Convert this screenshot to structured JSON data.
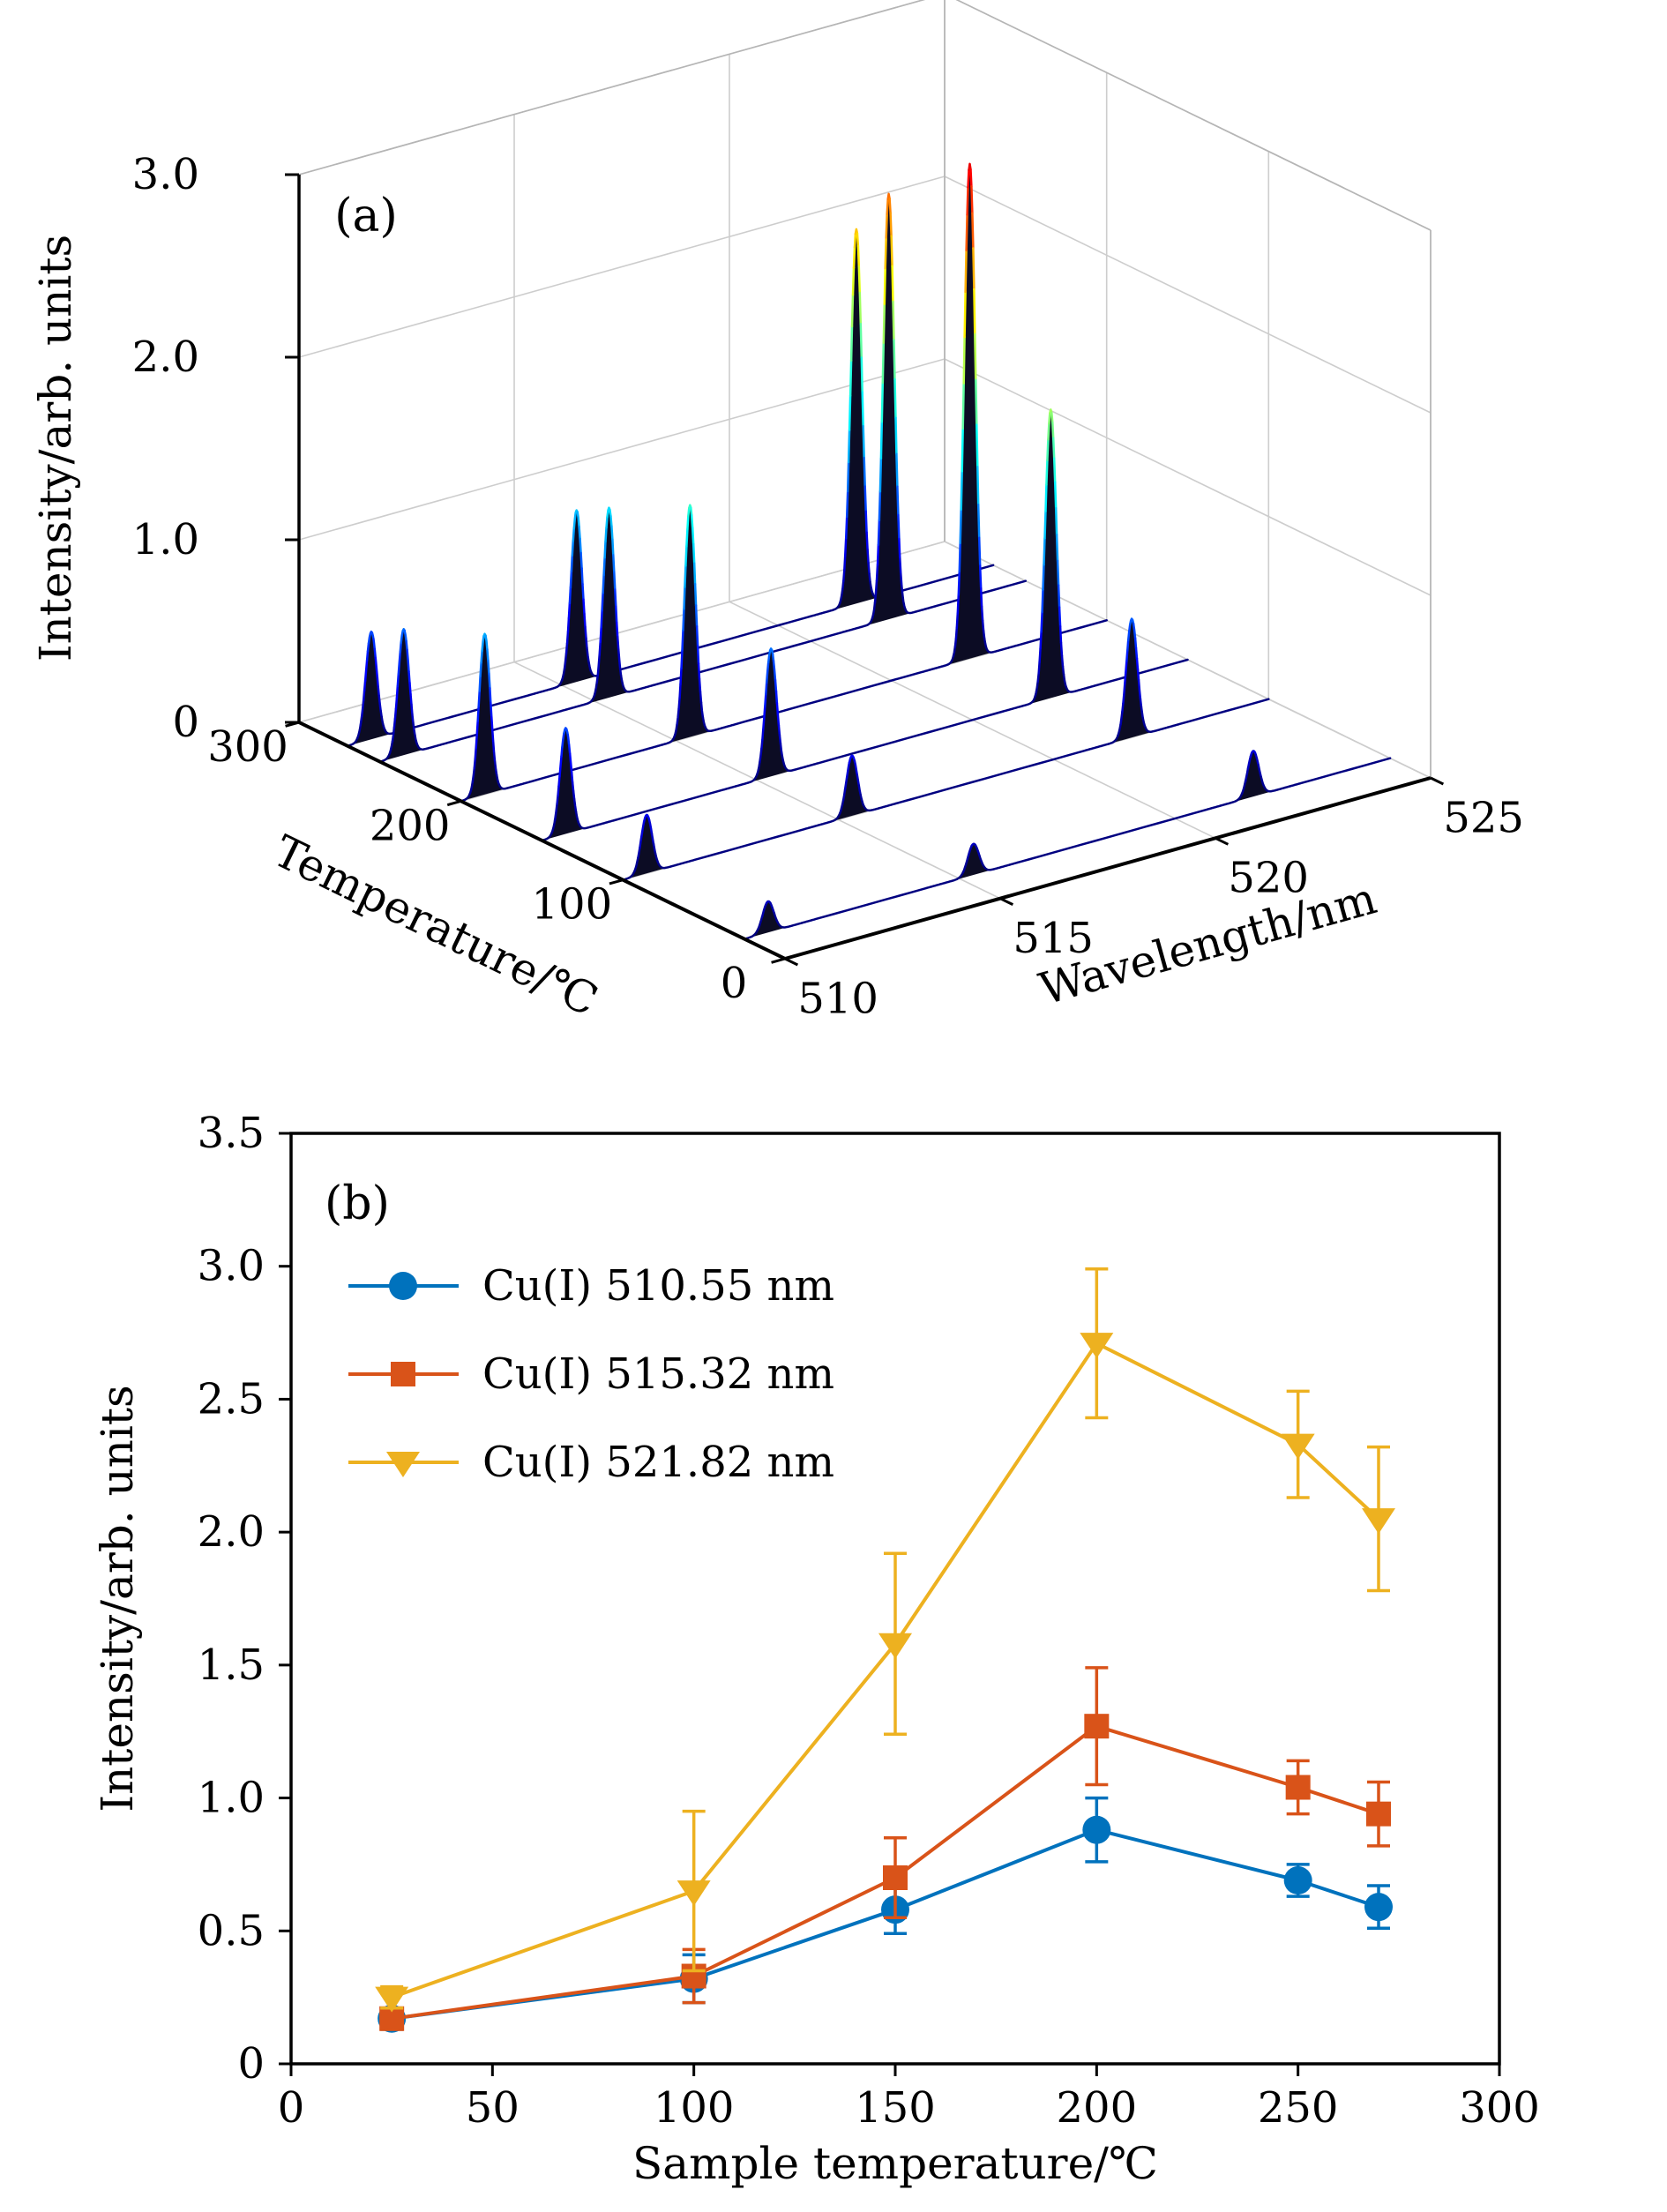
{
  "figure": {
    "background": "#ffffff",
    "panel_labels": [
      "(a)",
      "(b)"
    ]
  },
  "chart_data": [
    {
      "type": "line",
      "subtype": "3d-waterfall-spectra",
      "panel_label": "(a)",
      "xlabel": "Wavelength/nm",
      "ylabel": "Temperature/℃",
      "zlabel": "Intensity/arb. units",
      "xlim": [
        510,
        525
      ],
      "ylim": [
        0,
        300
      ],
      "zlim": [
        0,
        3.0
      ],
      "x_tick_values": [
        510,
        515,
        520,
        525
      ],
      "x_tick_labels": [
        "510",
        "515",
        "520",
        "525"
      ],
      "y_tick_values": [
        0,
        100,
        200,
        300
      ],
      "y_tick_labels": [
        "0",
        "100",
        "200",
        "300"
      ],
      "z_tick_values": [
        0,
        1.0,
        2.0,
        3.0
      ],
      "z_tick_labels": [
        "0",
        "1.0",
        "2.0",
        "3.0"
      ],
      "grid": true,
      "colormap": "jet",
      "fill_color": "#0c0c24",
      "peak_centers_nm": [
        510.55,
        515.32,
        521.82
      ],
      "peak_sigma_nm": 0.13,
      "spectra": [
        {
          "temperature": 25,
          "peak_heights": [
            0.17,
            0.17,
            0.25
          ]
        },
        {
          "temperature": 100,
          "peak_heights": [
            0.32,
            0.33,
            0.65
          ]
        },
        {
          "temperature": 150,
          "peak_heights": [
            0.58,
            0.7,
            1.58
          ]
        },
        {
          "temperature": 200,
          "peak_heights": [
            0.88,
            1.27,
            2.71
          ]
        },
        {
          "temperature": 250,
          "peak_heights": [
            0.69,
            1.04,
            2.33
          ]
        },
        {
          "temperature": 270,
          "peak_heights": [
            0.59,
            0.94,
            2.05
          ]
        }
      ]
    },
    {
      "type": "line",
      "panel_label": "(b)",
      "xlabel": "Sample temperature/℃",
      "ylabel": "Intensity/arb. units",
      "xlim": [
        0,
        300
      ],
      "ylim": [
        0,
        3.5
      ],
      "x_tick_values": [
        0,
        50,
        100,
        150,
        200,
        250,
        300
      ],
      "x_tick_labels": [
        "0",
        "50",
        "100",
        "150",
        "200",
        "250",
        "300"
      ],
      "y_tick_values": [
        0,
        0.5,
        1.0,
        1.5,
        2.0,
        2.5,
        3.0,
        3.5
      ],
      "y_tick_labels": [
        "0",
        "0.5",
        "1.0",
        "1.5",
        "2.0",
        "2.5",
        "3.0",
        "3.5"
      ],
      "grid": false,
      "legend_position": "top-left-inside",
      "x": [
        25,
        100,
        150,
        200,
        250,
        270
      ],
      "series": [
        {
          "name": "Cu(I) 510.55 nm",
          "color": "#0072BD",
          "marker": "circle",
          "values": [
            0.17,
            0.32,
            0.58,
            0.88,
            0.69,
            0.59
          ],
          "errors": [
            0.04,
            0.09,
            0.09,
            0.12,
            0.06,
            0.08
          ]
        },
        {
          "name": "Cu(I) 515.32 nm",
          "color": "#D95319",
          "marker": "square",
          "values": [
            0.17,
            0.33,
            0.7,
            1.27,
            1.04,
            0.94
          ],
          "errors": [
            0.04,
            0.1,
            0.15,
            0.22,
            0.1,
            0.12
          ]
        },
        {
          "name": "Cu(I) 521.82 nm",
          "color": "#EDB120",
          "marker": "triangle-down",
          "values": [
            0.25,
            0.65,
            1.58,
            2.71,
            2.33,
            2.05
          ],
          "errors": [
            0.04,
            0.3,
            0.34,
            0.28,
            0.2,
            0.27
          ]
        }
      ]
    }
  ]
}
